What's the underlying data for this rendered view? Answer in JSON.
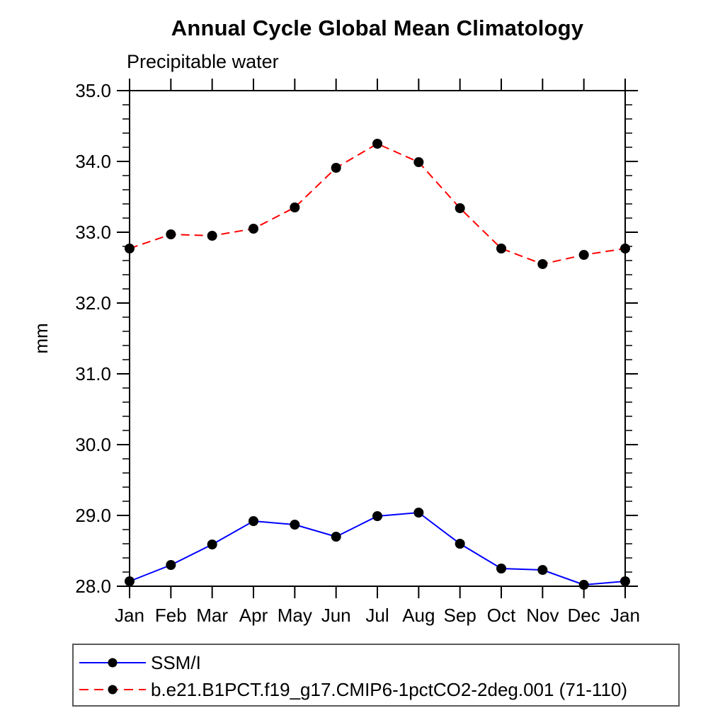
{
  "chart_data": {
    "type": "line",
    "title": "Annual Cycle Global Mean Climatology",
    "subtitle": "Precipitable water",
    "ylabel": "mm",
    "xlabel": "",
    "categories": [
      "Jan",
      "Feb",
      "Mar",
      "Apr",
      "May",
      "Jun",
      "Jul",
      "Aug",
      "Sep",
      "Oct",
      "Nov",
      "Dec",
      "Jan"
    ],
    "ylim": [
      28.0,
      35.0
    ],
    "yticks": [
      28.0,
      29.0,
      30.0,
      31.0,
      32.0,
      33.0,
      34.0,
      35.0
    ],
    "ytick_labels": [
      "28.0",
      "29.0",
      "30.0",
      "31.0",
      "32.0",
      "33.0",
      "34.0",
      "35.0"
    ],
    "ytick_minor_step": 0.2,
    "grid": false,
    "legend_position": "bottom-left",
    "frame_color": "#000000",
    "marker": {
      "shape": "circle",
      "color": "#000000",
      "radius": 7
    },
    "series": [
      {
        "name": "SSM/I",
        "color": "#0000ff",
        "line_style": "solid",
        "values": [
          28.07,
          28.3,
          28.59,
          28.92,
          28.87,
          28.7,
          28.99,
          29.04,
          28.6,
          28.25,
          28.23,
          28.02,
          28.07
        ]
      },
      {
        "name": "b.e21.B1PCT.f19_g17.CMIP6-1pctCO2-2deg.001 (71-110)",
        "color": "#ff0000",
        "line_style": "dashed",
        "values": [
          32.77,
          32.97,
          32.95,
          33.05,
          33.35,
          33.91,
          34.25,
          33.99,
          33.34,
          32.77,
          32.55,
          32.68,
          32.77
        ]
      }
    ]
  }
}
